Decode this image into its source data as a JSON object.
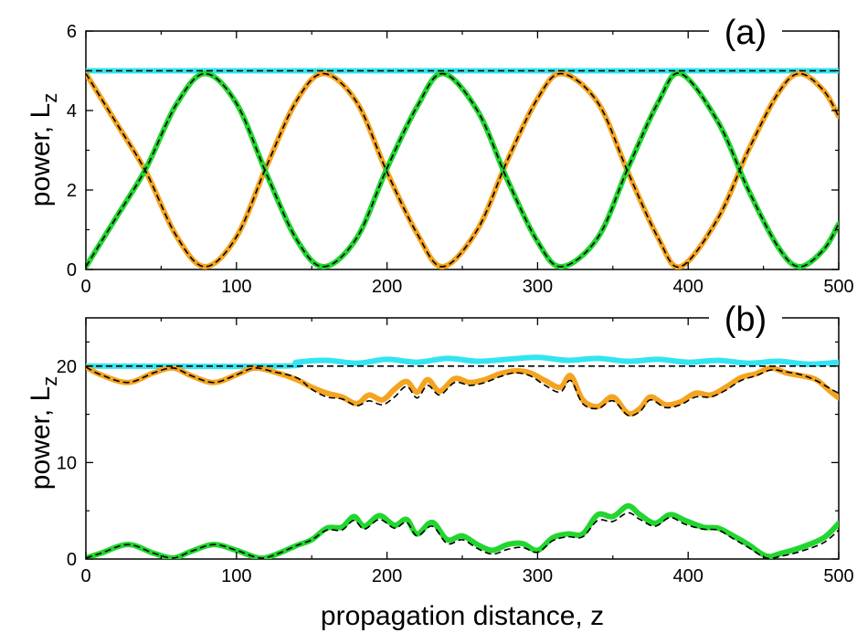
{
  "chart_data": [
    {
      "type": "line",
      "panel_label": "(a)",
      "ylabel": "power,  L",
      "ylabel_sub": "z",
      "xlim": [
        0,
        500
      ],
      "ylim": [
        0,
        6
      ],
      "xticks": [
        0,
        100,
        200,
        300,
        400,
        500
      ],
      "yticks": [
        0,
        2,
        4,
        6
      ],
      "series": [
        {
          "color": "#33e5f0",
          "style": "thick-solid",
          "x": [
            0,
            500
          ],
          "y": [
            5.0,
            5.0
          ]
        },
        {
          "color": "#f5a41f",
          "style": "thick-solid",
          "x": [
            0,
            20,
            40,
            60,
            79,
            100,
            120,
            140,
            158,
            180,
            200,
            220,
            237,
            260,
            280,
            300,
            316,
            340,
            360,
            380,
            395,
            420,
            440,
            460,
            474,
            490,
            500
          ],
          "y": [
            4.93,
            3.7,
            2.45,
            0.85,
            0.07,
            0.82,
            2.6,
            4.25,
            4.93,
            4.2,
            2.45,
            0.9,
            0.07,
            1.0,
            2.75,
            4.3,
            4.93,
            4.2,
            2.45,
            0.8,
            0.07,
            1.3,
            3.0,
            4.45,
            4.93,
            4.5,
            3.85
          ]
        },
        {
          "color": "#22d630",
          "style": "thick-solid",
          "x": [
            0,
            20,
            40,
            60,
            79,
            100,
            120,
            140,
            158,
            180,
            200,
            220,
            237,
            260,
            280,
            300,
            316,
            340,
            360,
            380,
            395,
            420,
            440,
            460,
            474,
            490,
            500
          ],
          "y": [
            0.07,
            1.3,
            2.55,
            4.15,
            4.93,
            4.18,
            2.4,
            0.75,
            0.07,
            0.8,
            2.55,
            4.1,
            4.93,
            4.0,
            2.25,
            0.7,
            0.07,
            0.8,
            2.55,
            4.2,
            4.93,
            3.7,
            2.0,
            0.55,
            0.07,
            0.5,
            1.15
          ]
        },
        {
          "color": "#000000",
          "style": "dashed",
          "x": [
            0,
            500
          ],
          "y": [
            5.0,
            5.0
          ]
        },
        {
          "color": "#000000",
          "style": "dashed",
          "x": [
            0,
            20,
            40,
            60,
            79,
            100,
            120,
            140,
            158,
            180,
            200,
            220,
            237,
            260,
            280,
            300,
            316,
            340,
            360,
            380,
            395,
            420,
            440,
            460,
            474,
            490,
            500
          ],
          "y": [
            4.93,
            3.7,
            2.45,
            0.85,
            0.07,
            0.82,
            2.6,
            4.25,
            4.93,
            4.2,
            2.45,
            0.9,
            0.07,
            1.0,
            2.75,
            4.3,
            4.93,
            4.2,
            2.45,
            0.8,
            0.07,
            1.3,
            3.0,
            4.45,
            4.93,
            4.5,
            3.85
          ]
        },
        {
          "color": "#000000",
          "style": "dashed",
          "x": [
            0,
            20,
            40,
            60,
            79,
            100,
            120,
            140,
            158,
            180,
            200,
            220,
            237,
            260,
            280,
            300,
            316,
            340,
            360,
            380,
            395,
            420,
            440,
            460,
            474,
            490,
            500
          ],
          "y": [
            0.07,
            1.3,
            2.55,
            4.15,
            4.93,
            4.18,
            2.4,
            0.75,
            0.07,
            0.8,
            2.55,
            4.1,
            4.93,
            4.0,
            2.25,
            0.7,
            0.07,
            0.8,
            2.55,
            4.2,
            4.93,
            3.7,
            2.0,
            0.55,
            0.07,
            0.5,
            1.15
          ]
        }
      ]
    },
    {
      "type": "line",
      "panel_label": "(b)",
      "ylabel": "power,  L",
      "ylabel_sub": "z",
      "xlabel": "propagation distance,  z",
      "xlim": [
        0,
        500
      ],
      "ylim": [
        0,
        25
      ],
      "xticks": [
        0,
        100,
        200,
        300,
        400,
        500
      ],
      "yticks": [
        0,
        10,
        20
      ],
      "series": [
        {
          "color": "#33e5f0",
          "style": "thick-solid",
          "x": [
            0,
            130,
            140,
            160,
            180,
            200,
            220,
            240,
            260,
            280,
            300,
            320,
            340,
            360,
            380,
            400,
            420,
            440,
            460,
            480,
            500
          ],
          "y": [
            20.0,
            20.0,
            20.4,
            20.6,
            20.3,
            20.7,
            20.4,
            20.8,
            20.5,
            20.7,
            20.9,
            20.6,
            20.8,
            20.5,
            20.7,
            20.4,
            20.6,
            20.3,
            20.5,
            20.2,
            20.4
          ]
        },
        {
          "color": "#f5a41f",
          "style": "thick-solid",
          "x": [
            0,
            10,
            28,
            45,
            58,
            70,
            85,
            100,
            112,
            125,
            140,
            150,
            160,
            170,
            180,
            188,
            197,
            205,
            213,
            220,
            227,
            235,
            245,
            255,
            265,
            275,
            285,
            295,
            305,
            315,
            322,
            330,
            340,
            350,
            360,
            368,
            375,
            385,
            395,
            405,
            415,
            425,
            435,
            445,
            455,
            465,
            475,
            485,
            495,
            500
          ],
          "y": [
            19.9,
            19.1,
            18.3,
            19.3,
            19.8,
            19.0,
            18.3,
            19.1,
            19.8,
            19.4,
            18.6,
            17.8,
            17.2,
            16.8,
            16.1,
            17.0,
            16.5,
            17.6,
            18.4,
            17.3,
            18.6,
            17.4,
            18.7,
            18.3,
            18.6,
            19.2,
            19.5,
            19.3,
            18.5,
            17.8,
            19.0,
            16.5,
            15.8,
            16.8,
            15.1,
            15.6,
            16.8,
            16.0,
            16.3,
            17.2,
            17.0,
            17.8,
            18.8,
            19.2,
            19.8,
            19.3,
            19.0,
            18.6,
            17.3,
            16.7
          ]
        },
        {
          "color": "#22d630",
          "style": "thick-solid",
          "x": [
            0,
            10,
            28,
            45,
            58,
            70,
            85,
            100,
            115,
            125,
            140,
            150,
            160,
            170,
            178,
            185,
            195,
            205,
            213,
            220,
            230,
            240,
            250,
            260,
            270,
            280,
            290,
            300,
            310,
            320,
            330,
            340,
            350,
            360,
            368,
            378,
            388,
            398,
            410,
            420,
            430,
            440,
            452,
            462,
            475,
            490,
            500
          ],
          "y": [
            0.1,
            0.6,
            1.5,
            0.6,
            0.1,
            0.8,
            1.5,
            0.9,
            0.1,
            0.4,
            1.4,
            2.0,
            3.2,
            3.3,
            4.4,
            3.4,
            4.5,
            3.5,
            4.1,
            2.6,
            3.8,
            2.0,
            2.4,
            1.5,
            0.9,
            1.5,
            1.6,
            0.9,
            2.2,
            2.6,
            2.6,
            4.6,
            4.4,
            5.5,
            4.6,
            3.7,
            4.6,
            4.0,
            3.3,
            3.2,
            2.4,
            1.5,
            0.3,
            0.6,
            1.2,
            2.2,
            3.7
          ]
        },
        {
          "color": "#000000",
          "style": "dashed",
          "x": [
            0,
            500
          ],
          "y": [
            20.0,
            20.0
          ]
        },
        {
          "color": "#000000",
          "style": "dashed",
          "x": [
            0,
            10,
            28,
            45,
            58,
            70,
            85,
            100,
            112,
            125,
            140,
            150,
            160,
            170,
            180,
            188,
            197,
            205,
            213,
            220,
            227,
            235,
            245,
            255,
            265,
            275,
            285,
            295,
            305,
            315,
            322,
            330,
            340,
            350,
            360,
            368,
            375,
            385,
            395,
            405,
            415,
            425,
            435,
            445,
            455,
            465,
            475,
            485,
            495,
            500
          ],
          "y": [
            19.9,
            19.1,
            18.3,
            19.3,
            19.8,
            19.0,
            18.3,
            19.1,
            19.8,
            19.4,
            18.8,
            17.6,
            16.8,
            16.6,
            15.9,
            16.4,
            16.0,
            16.8,
            17.9,
            16.7,
            18.0,
            17.0,
            18.3,
            18.0,
            18.3,
            18.9,
            19.3,
            19.0,
            18.0,
            17.3,
            18.5,
            16.1,
            15.6,
            16.4,
            14.9,
            15.3,
            16.5,
            15.7,
            16.0,
            16.8,
            16.8,
            17.5,
            18.5,
            19.0,
            19.6,
            19.4,
            19.1,
            18.5,
            17.6,
            17.2
          ]
        },
        {
          "color": "#000000",
          "style": "dashed",
          "x": [
            0,
            10,
            28,
            45,
            58,
            70,
            85,
            100,
            115,
            125,
            140,
            150,
            160,
            170,
            178,
            185,
            195,
            205,
            213,
            220,
            230,
            240,
            250,
            260,
            270,
            280,
            290,
            300,
            310,
            320,
            330,
            340,
            350,
            360,
            368,
            378,
            388,
            398,
            410,
            420,
            430,
            440,
            452,
            462,
            475,
            490,
            500
          ],
          "y": [
            0.1,
            0.6,
            1.5,
            0.6,
            0.1,
            0.8,
            1.5,
            0.9,
            0.1,
            0.4,
            1.4,
            2.0,
            3.0,
            3.0,
            4.0,
            3.1,
            4.1,
            3.2,
            3.8,
            2.4,
            3.4,
            1.6,
            2.0,
            1.1,
            0.5,
            1.0,
            1.2,
            0.7,
            1.9,
            2.3,
            2.3,
            4.0,
            3.9,
            4.8,
            4.1,
            3.4,
            4.3,
            3.6,
            3.1,
            3.0,
            2.1,
            1.2,
            0.1,
            0.3,
            0.8,
            1.7,
            3.0
          ]
        }
      ]
    }
  ]
}
